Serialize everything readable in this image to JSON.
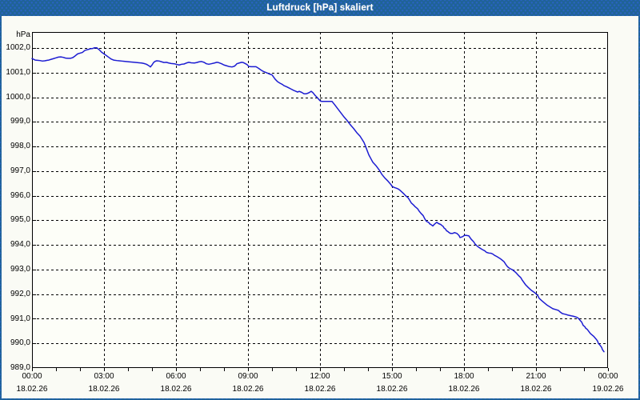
{
  "window": {
    "title": "Luftdruck [hPa] skaliert"
  },
  "colors": {
    "titlebar_base": "#1f6396",
    "titlebar_dots": "#2a63c4",
    "window_border": "#1f6396",
    "content_background": "#fafbf5",
    "plot_background": "#fdfef8",
    "grid": "#000000",
    "axis": "#000000",
    "text": "#000000",
    "title_text": "#ffffff",
    "line": "#1c1cd2"
  },
  "chart_data": {
    "type": "line",
    "title": "Luftdruck [hPa] skaliert",
    "ylabel": "hPa",
    "unit_label": "hPa",
    "grid": "dashed",
    "legend": "none",
    "ylim": [
      989.0,
      1002.65
    ],
    "xlim_minutes": [
      0,
      1440
    ],
    "x_minor_tick_minutes": 60,
    "y_ticks": [
      {
        "value": 1002.0,
        "label": "1002,0"
      },
      {
        "value": 1001.0,
        "label": "1001,0"
      },
      {
        "value": 1000.0,
        "label": "1000,0"
      },
      {
        "value": 999.0,
        "label": "999,0"
      },
      {
        "value": 998.0,
        "label": "998,0"
      },
      {
        "value": 997.0,
        "label": "997,0"
      },
      {
        "value": 996.0,
        "label": "996,0"
      },
      {
        "value": 995.0,
        "label": "995,0"
      },
      {
        "value": 994.0,
        "label": "994,0"
      },
      {
        "value": 993.0,
        "label": "993,0"
      },
      {
        "value": 992.0,
        "label": "992,0"
      },
      {
        "value": 991.0,
        "label": "991,0"
      },
      {
        "value": 990.0,
        "label": "990,0"
      },
      {
        "value": 989.0,
        "label": "989,0"
      }
    ],
    "x_ticks": [
      {
        "minutes": 0,
        "time": "00:00",
        "date": "18.02.26"
      },
      {
        "minutes": 180,
        "time": "03:00",
        "date": "18.02.26"
      },
      {
        "minutes": 360,
        "time": "06:00",
        "date": "18.02.26"
      },
      {
        "minutes": 540,
        "time": "09:00",
        "date": "18.02.26"
      },
      {
        "minutes": 720,
        "time": "12:00",
        "date": "18.02.26"
      },
      {
        "minutes": 900,
        "time": "15:00",
        "date": "18.02.26"
      },
      {
        "minutes": 1080,
        "time": "18:00",
        "date": "18.02.26"
      },
      {
        "minutes": 1260,
        "time": "21:00",
        "date": "18.02.26"
      },
      {
        "minutes": 1440,
        "time": "00:00",
        "date": "19.02.26"
      }
    ],
    "series": [
      {
        "name": "Luftdruck",
        "unit": "hPa",
        "points": [
          [
            0,
            1001.57
          ],
          [
            8,
            1001.51
          ],
          [
            14,
            1001.5
          ],
          [
            20,
            1001.49
          ],
          [
            26,
            1001.47
          ],
          [
            32,
            1001.48
          ],
          [
            38,
            1001.5
          ],
          [
            42,
            1001.51
          ],
          [
            48,
            1001.54
          ],
          [
            54,
            1001.57
          ],
          [
            60,
            1001.6
          ],
          [
            66,
            1001.63
          ],
          [
            72,
            1001.64
          ],
          [
            78,
            1001.62
          ],
          [
            84,
            1001.59
          ],
          [
            90,
            1001.58
          ],
          [
            96,
            1001.58
          ],
          [
            102,
            1001.61
          ],
          [
            108,
            1001.68
          ],
          [
            114,
            1001.76
          ],
          [
            120,
            1001.79
          ],
          [
            126,
            1001.82
          ],
          [
            132,
            1001.9
          ],
          [
            136,
            1001.92
          ],
          [
            140,
            1001.94
          ],
          [
            146,
            1001.97
          ],
          [
            152,
            1001.98
          ],
          [
            156,
            1002.01
          ],
          [
            162,
            1002.01
          ],
          [
            164,
            1001.98
          ],
          [
            168,
            1001.93
          ],
          [
            174,
            1001.83
          ],
          [
            180,
            1001.76
          ],
          [
            186,
            1001.69
          ],
          [
            192,
            1001.62
          ],
          [
            198,
            1001.55
          ],
          [
            204,
            1001.51
          ],
          [
            212,
            1001.49
          ],
          [
            218,
            1001.48
          ],
          [
            224,
            1001.47
          ],
          [
            230,
            1001.46
          ],
          [
            242,
            1001.44
          ],
          [
            256,
            1001.42
          ],
          [
            268,
            1001.4
          ],
          [
            274,
            1001.39
          ],
          [
            280,
            1001.37
          ],
          [
            286,
            1001.34
          ],
          [
            290,
            1001.3
          ],
          [
            294,
            1001.26
          ],
          [
            296,
            1001.23
          ],
          [
            300,
            1001.31
          ],
          [
            304,
            1001.41
          ],
          [
            308,
            1001.46
          ],
          [
            312,
            1001.48
          ],
          [
            318,
            1001.47
          ],
          [
            324,
            1001.44
          ],
          [
            330,
            1001.41
          ],
          [
            336,
            1001.42
          ],
          [
            342,
            1001.39
          ],
          [
            348,
            1001.37
          ],
          [
            356,
            1001.36
          ],
          [
            360,
            1001.34
          ],
          [
            368,
            1001.31
          ],
          [
            374,
            1001.34
          ],
          [
            380,
            1001.35
          ],
          [
            386,
            1001.39
          ],
          [
            392,
            1001.42
          ],
          [
            398,
            1001.4
          ],
          [
            406,
            1001.39
          ],
          [
            412,
            1001.41
          ],
          [
            418,
            1001.44
          ],
          [
            424,
            1001.45
          ],
          [
            430,
            1001.42
          ],
          [
            436,
            1001.36
          ],
          [
            442,
            1001.34
          ],
          [
            448,
            1001.36
          ],
          [
            456,
            1001.39
          ],
          [
            462,
            1001.42
          ],
          [
            466,
            1001.41
          ],
          [
            474,
            1001.36
          ],
          [
            480,
            1001.31
          ],
          [
            486,
            1001.28
          ],
          [
            492,
            1001.25
          ],
          [
            500,
            1001.23
          ],
          [
            506,
            1001.26
          ],
          [
            510,
            1001.32
          ],
          [
            512,
            1001.36
          ],
          [
            518,
            1001.39
          ],
          [
            524,
            1001.42
          ],
          [
            528,
            1001.41
          ],
          [
            534,
            1001.36
          ],
          [
            538,
            1001.32
          ],
          [
            542,
            1001.25
          ],
          [
            548,
            1001.24
          ],
          [
            560,
            1001.24
          ],
          [
            566,
            1001.18
          ],
          [
            572,
            1001.11
          ],
          [
            578,
            1001.05
          ],
          [
            584,
            1001.01
          ],
          [
            590,
            1000.97
          ],
          [
            594,
            1000.94
          ],
          [
            600,
            1000.91
          ],
          [
            604,
            1000.82
          ],
          [
            608,
            1000.73
          ],
          [
            614,
            1000.63
          ],
          [
            620,
            1000.57
          ],
          [
            626,
            1000.52
          ],
          [
            630,
            1000.47
          ],
          [
            636,
            1000.43
          ],
          [
            642,
            1000.38
          ],
          [
            648,
            1000.33
          ],
          [
            654,
            1000.28
          ],
          [
            660,
            1000.24
          ],
          [
            664,
            1000.21
          ],
          [
            668,
            1000.24
          ],
          [
            674,
            1000.2
          ],
          [
            680,
            1000.14
          ],
          [
            686,
            1000.14
          ],
          [
            692,
            1000.18
          ],
          [
            698,
            1000.24
          ],
          [
            702,
            1000.19
          ],
          [
            708,
            1000.07
          ],
          [
            714,
            999.97
          ],
          [
            720,
            999.86
          ],
          [
            724,
            999.83
          ],
          [
            750,
            999.83
          ],
          [
            756,
            999.71
          ],
          [
            764,
            999.54
          ],
          [
            772,
            999.37
          ],
          [
            780,
            999.2
          ],
          [
            788,
            999.05
          ],
          [
            796,
            998.88
          ],
          [
            804,
            998.73
          ],
          [
            812,
            998.56
          ],
          [
            820,
            998.42
          ],
          [
            824,
            998.32
          ],
          [
            830,
            998.16
          ],
          [
            834,
            998.0
          ],
          [
            842,
            997.66
          ],
          [
            848,
            997.48
          ],
          [
            852,
            997.36
          ],
          [
            860,
            997.22
          ],
          [
            870,
            997.0
          ],
          [
            874,
            996.88
          ],
          [
            882,
            996.72
          ],
          [
            890,
            996.59
          ],
          [
            898,
            996.44
          ],
          [
            900,
            996.38
          ],
          [
            906,
            996.33
          ],
          [
            910,
            996.31
          ],
          [
            916,
            996.27
          ],
          [
            920,
            996.22
          ],
          [
            924,
            996.16
          ],
          [
            930,
            996.07
          ],
          [
            934,
            996.0
          ],
          [
            940,
            995.92
          ],
          [
            944,
            995.82
          ],
          [
            948,
            995.71
          ],
          [
            954,
            995.62
          ],
          [
            958,
            995.55
          ],
          [
            964,
            995.47
          ],
          [
            968,
            995.37
          ],
          [
            972,
            995.29
          ],
          [
            978,
            995.19
          ],
          [
            982,
            995.06
          ],
          [
            986,
            994.96
          ],
          [
            992,
            994.91
          ],
          [
            994,
            994.86
          ],
          [
            998,
            994.82
          ],
          [
            1002,
            994.77
          ],
          [
            1006,
            994.84
          ],
          [
            1012,
            994.92
          ],
          [
            1016,
            994.87
          ],
          [
            1022,
            994.83
          ],
          [
            1024,
            994.8
          ],
          [
            1028,
            994.75
          ],
          [
            1030,
            994.69
          ],
          [
            1034,
            994.64
          ],
          [
            1036,
            994.58
          ],
          [
            1040,
            994.54
          ],
          [
            1042,
            994.51
          ],
          [
            1046,
            994.47
          ],
          [
            1052,
            994.47
          ],
          [
            1056,
            994.5
          ],
          [
            1062,
            994.47
          ],
          [
            1064,
            994.44
          ],
          [
            1066,
            994.41
          ],
          [
            1068,
            994.37
          ],
          [
            1070,
            994.3
          ],
          [
            1074,
            994.32
          ],
          [
            1078,
            994.35
          ],
          [
            1080,
            994.38
          ],
          [
            1084,
            994.39
          ],
          [
            1092,
            994.37
          ],
          [
            1098,
            994.23
          ],
          [
            1104,
            994.13
          ],
          [
            1108,
            994.03
          ],
          [
            1114,
            993.94
          ],
          [
            1120,
            993.87
          ],
          [
            1126,
            993.81
          ],
          [
            1132,
            993.76
          ],
          [
            1136,
            993.7
          ],
          [
            1142,
            993.67
          ],
          [
            1148,
            993.66
          ],
          [
            1152,
            993.63
          ],
          [
            1156,
            993.58
          ],
          [
            1162,
            993.53
          ],
          [
            1166,
            993.49
          ],
          [
            1170,
            993.45
          ],
          [
            1174,
            993.4
          ],
          [
            1180,
            993.32
          ],
          [
            1184,
            993.22
          ],
          [
            1188,
            993.13
          ],
          [
            1192,
            993.07
          ],
          [
            1196,
            993.03
          ],
          [
            1200,
            993.0
          ],
          [
            1206,
            992.93
          ],
          [
            1210,
            992.87
          ],
          [
            1214,
            992.8
          ],
          [
            1218,
            992.73
          ],
          [
            1222,
            992.67
          ],
          [
            1226,
            992.56
          ],
          [
            1234,
            992.38
          ],
          [
            1240,
            992.28
          ],
          [
            1248,
            992.16
          ],
          [
            1254,
            992.09
          ],
          [
            1260,
            992.02
          ],
          [
            1264,
            991.95
          ],
          [
            1268,
            991.83
          ],
          [
            1274,
            991.74
          ],
          [
            1282,
            991.63
          ],
          [
            1288,
            991.55
          ],
          [
            1296,
            991.47
          ],
          [
            1302,
            991.41
          ],
          [
            1310,
            991.37
          ],
          [
            1316,
            991.34
          ],
          [
            1320,
            991.28
          ],
          [
            1326,
            991.21
          ],
          [
            1334,
            991.18
          ],
          [
            1340,
            991.15
          ],
          [
            1348,
            991.12
          ],
          [
            1354,
            991.1
          ],
          [
            1362,
            991.06
          ],
          [
            1366,
            991.02
          ],
          [
            1370,
            990.94
          ],
          [
            1374,
            990.87
          ],
          [
            1376,
            990.8
          ],
          [
            1378,
            990.73
          ],
          [
            1382,
            990.68
          ],
          [
            1384,
            990.62
          ],
          [
            1388,
            990.57
          ],
          [
            1390,
            990.53
          ],
          [
            1396,
            990.4
          ],
          [
            1404,
            990.29
          ],
          [
            1410,
            990.18
          ],
          [
            1414,
            990.09
          ],
          [
            1416,
            990.0
          ],
          [
            1420,
            989.93
          ],
          [
            1424,
            989.84
          ],
          [
            1426,
            989.75
          ],
          [
            1430,
            989.66
          ]
        ]
      }
    ]
  }
}
